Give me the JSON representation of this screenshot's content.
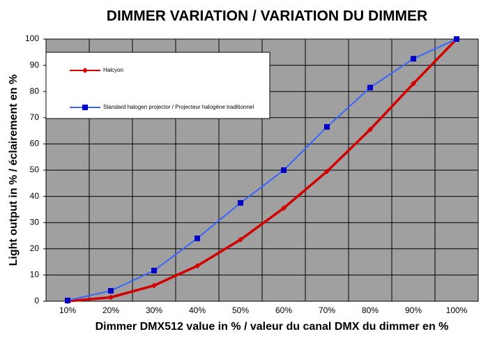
{
  "chart_data": {
    "type": "line",
    "title": "DIMMER VARIATION / VARIATION DU DIMMER",
    "x_label": "Dimmer DMX512 value in % / valeur du canal DMX du dimmer en %",
    "y_label": "Light output in % / éclairement en %",
    "categories": [
      "10%",
      "20%",
      "30%",
      "40%",
      "50%",
      "60%",
      "70%",
      "80%",
      "90%",
      "100%"
    ],
    "series": [
      {
        "name": "Halcyon",
        "color": "#d40000",
        "marker": "diamond",
        "marker_color": "#d40000",
        "values": [
          0,
          1.5,
          6,
          13.5,
          23.5,
          35.5,
          49.5,
          65.5,
          83,
          100
        ]
      },
      {
        "name": "Standard halogen projector / Projecteur halogène traditionnel",
        "color": "#3a64ff",
        "marker": "square",
        "marker_color": "#0000c8",
        "values": [
          0.3,
          4,
          11.7,
          24,
          37.5,
          50,
          66.5,
          81.5,
          92.5,
          100
        ]
      }
    ],
    "ylim": [
      0,
      100
    ],
    "yticks": [
      0,
      10,
      20,
      30,
      40,
      50,
      60,
      70,
      80,
      90,
      100
    ],
    "grid": true,
    "legend": "upper left",
    "plot_background": "#a0a0a0"
  }
}
